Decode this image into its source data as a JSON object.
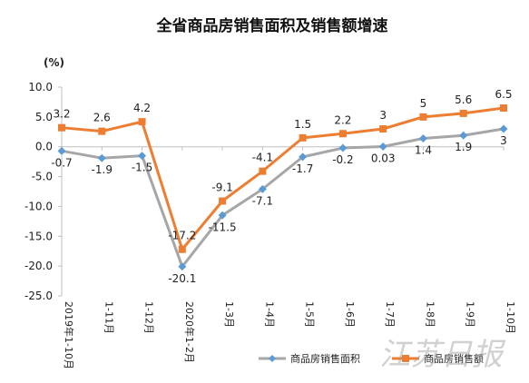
{
  "chart_data": {
    "type": "line",
    "title": "全省商品房销售面积及销售额增速",
    "unit_label": "(%)",
    "categories": [
      "2019年1-10月",
      "1-11月",
      "1-12月",
      "2020年1-2月",
      "1-3月",
      "1-4月",
      "1-5月",
      "1-6月",
      "1-7月",
      "1-8月",
      "1-9月",
      "1-10月"
    ],
    "series": [
      {
        "name": "商品房销售面积",
        "color": "#a6a6a6",
        "marker": "diamond",
        "marker_color": "#5b9bd5",
        "values": [
          -0.7,
          -1.9,
          -1.5,
          -20.1,
          -11.5,
          -7.1,
          -1.7,
          -0.2,
          0.03,
          1.4,
          1.9,
          3
        ],
        "labels": [
          "-0.7",
          "-1.9",
          "-1.5",
          "-20.1",
          "-11.5",
          "-7.1",
          "-1.7",
          "-0.2",
          "0.03",
          "1.4",
          "1.9",
          "3"
        ]
      },
      {
        "name": "商品房销售额",
        "color": "#ed7d31",
        "marker": "square",
        "marker_color": "#ed7d31",
        "values": [
          3.2,
          2.6,
          4.2,
          -17.2,
          -9.1,
          -4.1,
          1.5,
          2.2,
          3,
          5,
          5.6,
          6.5
        ],
        "labels": [
          "3.2",
          "2.6",
          "4.2",
          "-17.2",
          "-9.1",
          "-4.1",
          "1.5",
          "2.2",
          "3",
          "5",
          "5.6",
          "6.5"
        ]
      }
    ],
    "ylim": [
      -25,
      10
    ],
    "yticks": [
      "10.0",
      "5.0",
      "0.0",
      "-5.0",
      "-10.0",
      "-15.0",
      "-20.0",
      "-25.0"
    ],
    "ytick_values": [
      10,
      5,
      0,
      -5,
      -10,
      -15,
      -20,
      -25
    ],
    "grid": false,
    "legend_position": "bottom"
  },
  "watermark": "江苏日报"
}
